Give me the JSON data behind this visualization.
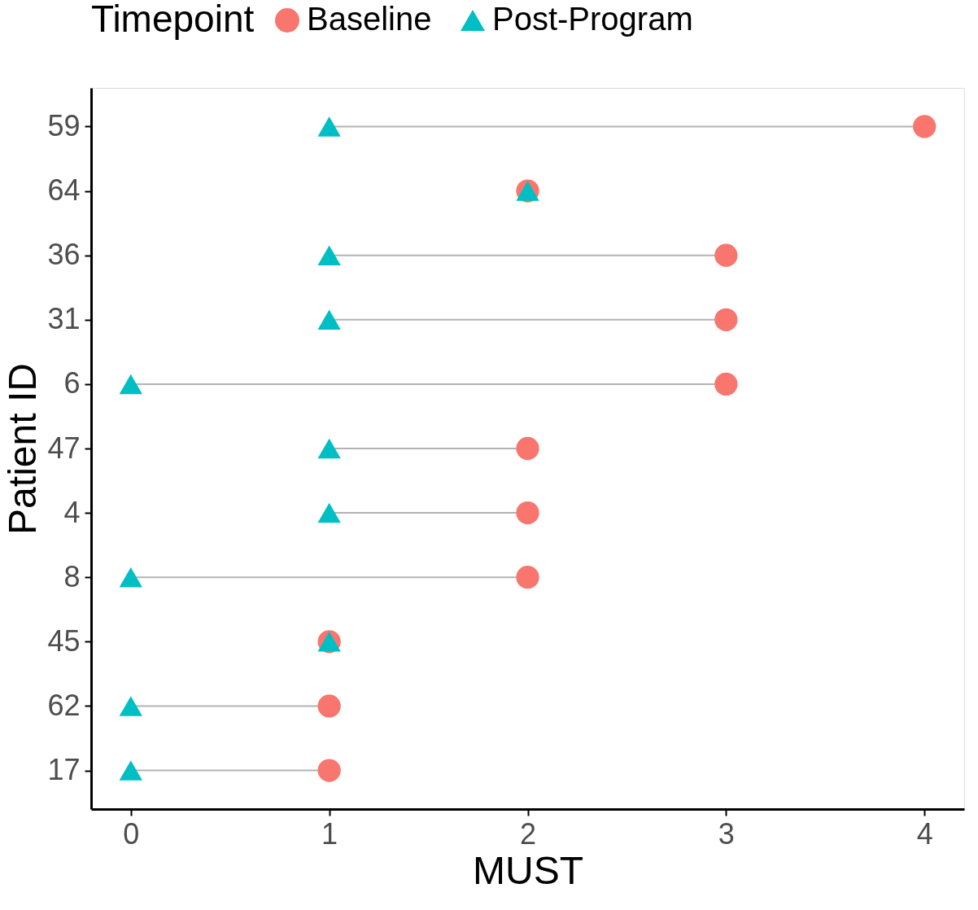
{
  "chart_data": {
    "type": "scatter",
    "orientation": "horizontal",
    "xlabel": "MUST",
    "ylabel": "Patient ID",
    "legend_title": "Timepoint",
    "categories": [
      "59",
      "64",
      "36",
      "31",
      "6",
      "47",
      "4",
      "8",
      "45",
      "62",
      "17"
    ],
    "series": [
      {
        "name": "Baseline",
        "color": "#f8766d",
        "marker": "circle",
        "values": [
          4,
          2,
          3,
          3,
          3,
          2,
          2,
          2,
          1,
          1,
          1
        ]
      },
      {
        "name": "Post-Program",
        "color": "#00bfc4",
        "marker": "triangle",
        "values": [
          1,
          2,
          1,
          1,
          0,
          1,
          1,
          0,
          1,
          0,
          0
        ]
      }
    ],
    "xlim": [
      -0.2,
      4.2
    ],
    "xticks": [
      0,
      1,
      2,
      3,
      4
    ],
    "grid": false,
    "legend": "top"
  }
}
